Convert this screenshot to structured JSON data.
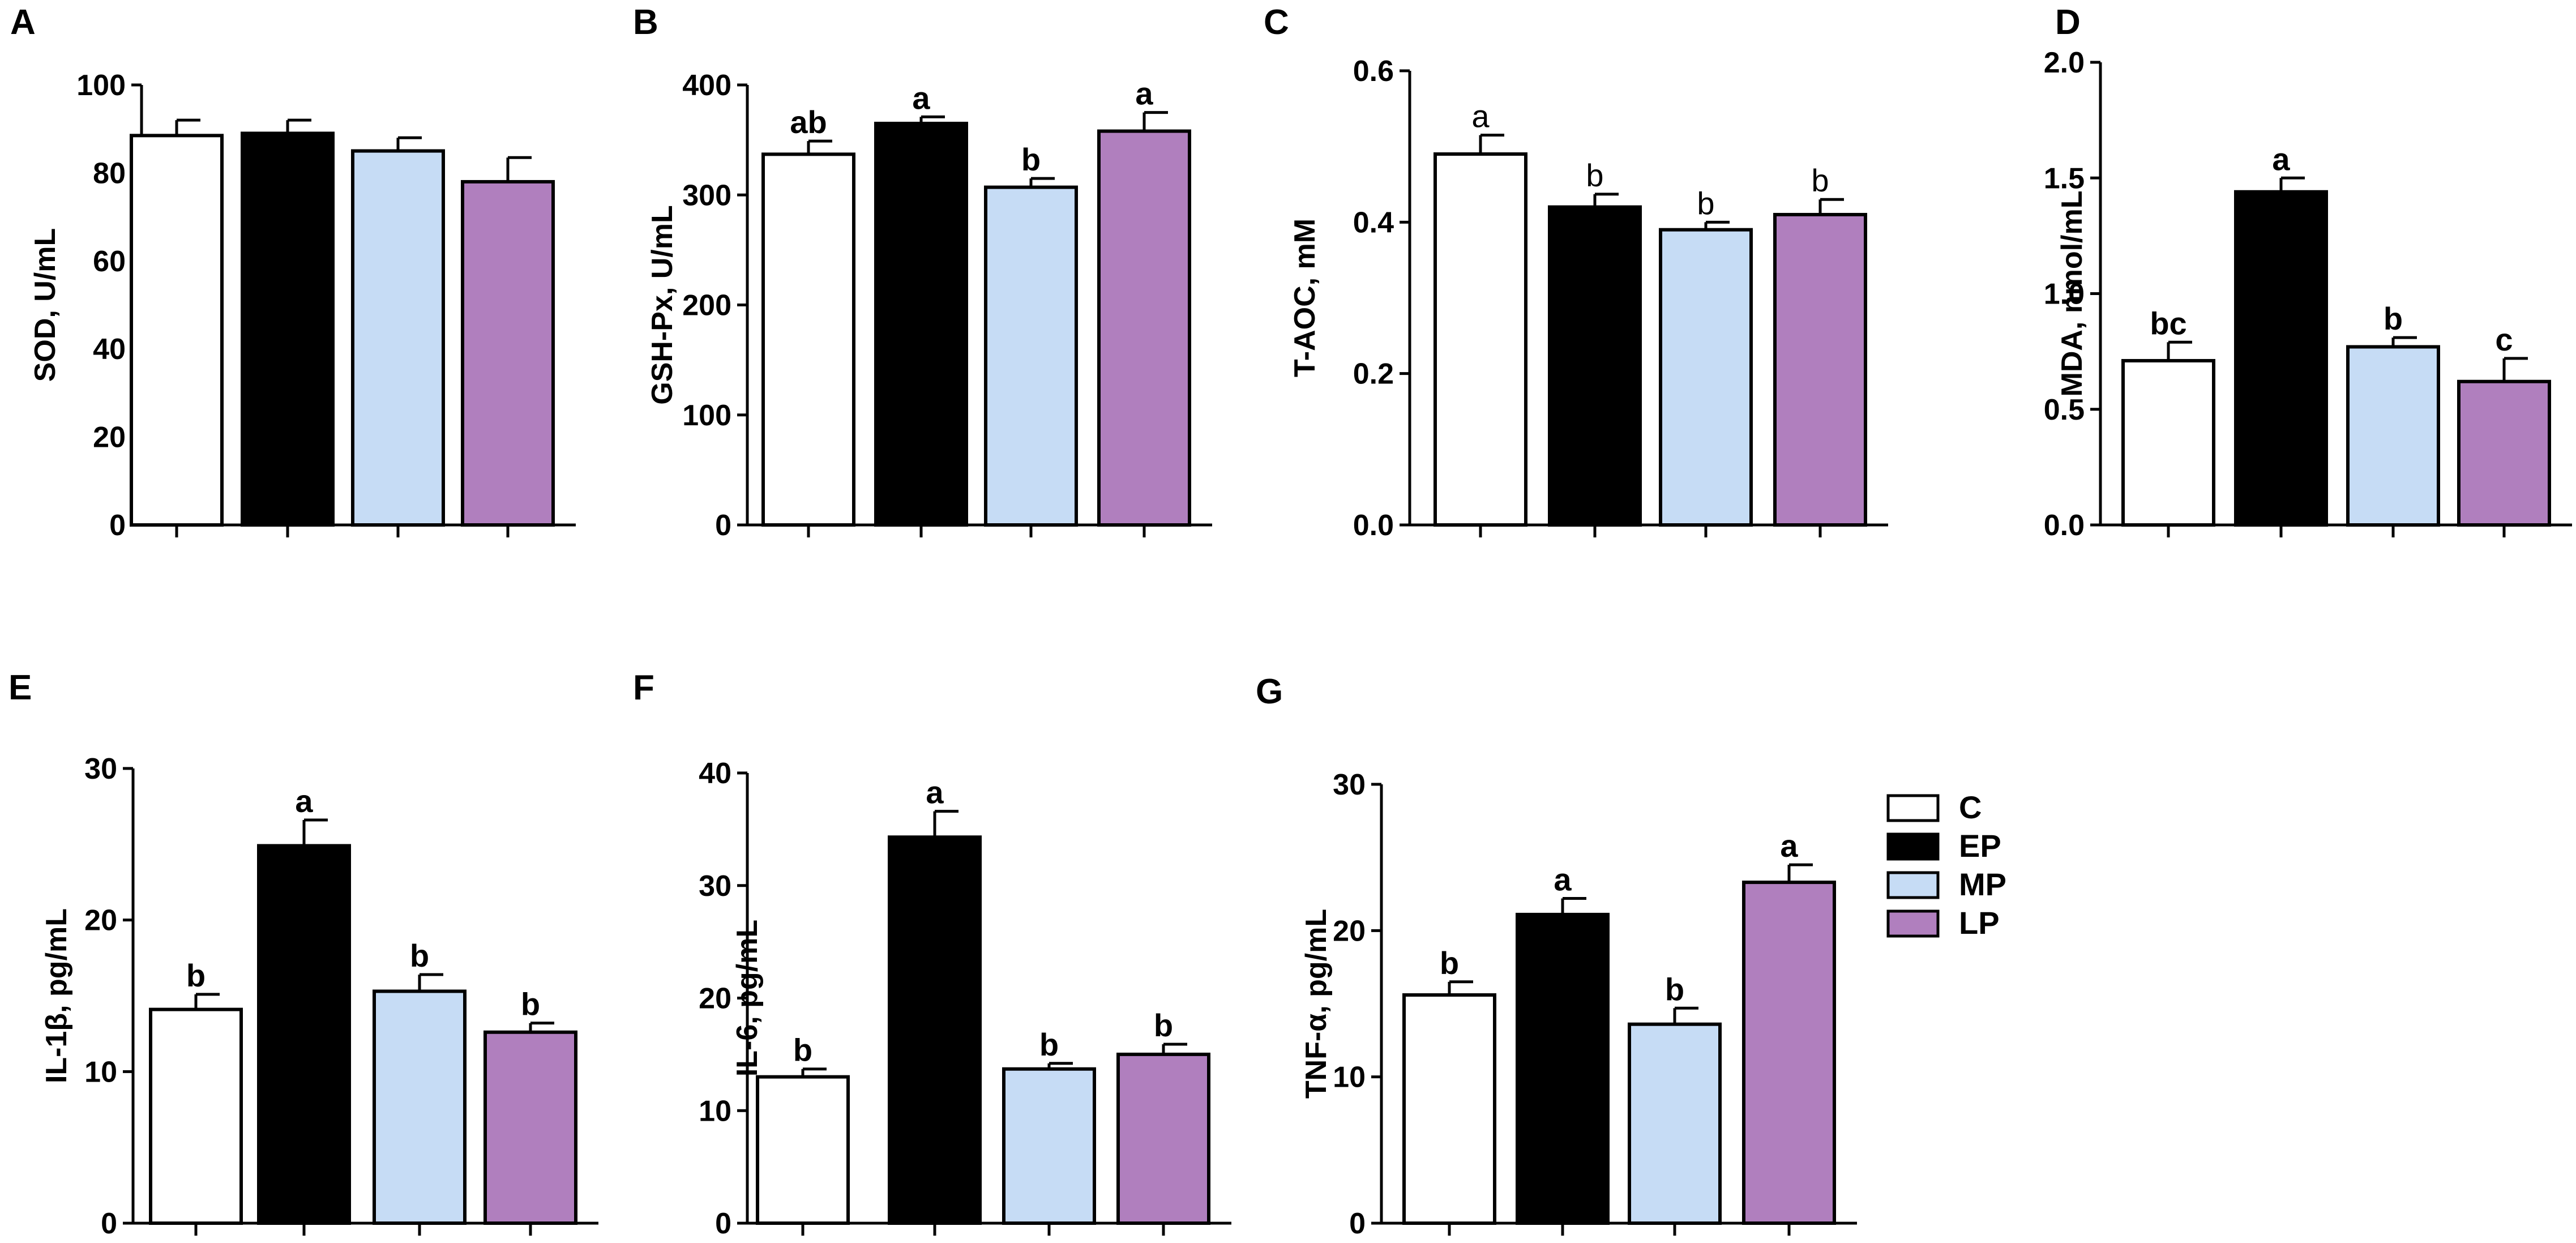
{
  "chart_data": [
    {
      "type": "bar",
      "panel": "A",
      "ylabel": "SOD, U/mL",
      "ylim": [
        0,
        100
      ],
      "yticks": [
        0,
        20,
        40,
        60,
        80,
        100
      ],
      "categories": [
        "C",
        "EP",
        "MP",
        "LP"
      ],
      "values": [
        88.5,
        89,
        85,
        78
      ],
      "errors": [
        3.5,
        3,
        3,
        5.5
      ],
      "letters": [
        "",
        "",
        "",
        ""
      ],
      "letters_bold": false
    },
    {
      "type": "bar",
      "panel": "B",
      "ylabel": "GSH-Px, U/mL",
      "ylim": [
        0,
        400
      ],
      "yticks": [
        0,
        100,
        200,
        300,
        400
      ],
      "categories": [
        "C",
        "EP",
        "MP",
        "LP"
      ],
      "values": [
        337,
        365,
        307,
        358
      ],
      "errors": [
        12,
        6,
        8,
        17
      ],
      "letters": [
        "ab",
        "a",
        "b",
        "a"
      ],
      "letters_bold": true
    },
    {
      "type": "bar",
      "panel": "C",
      "ylabel": "T-AOC, mM",
      "ylim": [
        0,
        0.6
      ],
      "yticks": [
        "0.0",
        "0.2",
        "0.4",
        "0.6"
      ],
      "categories": [
        "C",
        "EP",
        "MP",
        "LP"
      ],
      "values": [
        0.49,
        0.42,
        0.39,
        0.41
      ],
      "errors": [
        0.025,
        0.017,
        0.01,
        0.02
      ],
      "letters": [
        "a",
        "b",
        "b",
        "b"
      ],
      "letters_bold": false
    },
    {
      "type": "bar",
      "panel": "D",
      "ylabel": "MDA, nmol/mL",
      "ylim": [
        0,
        2
      ],
      "yticks": [
        "0.0",
        "0.5",
        "1.0",
        "1.5",
        "2.0"
      ],
      "categories": [
        "C",
        "EP",
        "MP",
        "LP"
      ],
      "values": [
        0.71,
        1.44,
        0.77,
        0.62
      ],
      "errors": [
        0.08,
        0.06,
        0.04,
        0.1
      ],
      "letters": [
        "bc",
        "a",
        "b",
        "c"
      ],
      "letters_bold": true
    },
    {
      "type": "bar",
      "panel": "E",
      "ylabel": "IL-1β, pg/mL",
      "ylim": [
        0,
        30
      ],
      "yticks": [
        0,
        10,
        20,
        30
      ],
      "categories": [
        "C",
        "EP",
        "MP",
        "LP"
      ],
      "values": [
        14.1,
        24.9,
        15.3,
        12.6
      ],
      "errors": [
        1.0,
        1.7,
        1.1,
        0.6
      ],
      "letters": [
        "b",
        "a",
        "b",
        "b"
      ],
      "letters_bold": true
    },
    {
      "type": "bar",
      "panel": "F",
      "ylabel": "IL-6, pg/mL",
      "ylim": [
        0,
        40
      ],
      "yticks": [
        0,
        10,
        20,
        30,
        40
      ],
      "categories": [
        "C",
        "EP",
        "MP",
        "LP"
      ],
      "values": [
        13,
        34.3,
        13.7,
        15
      ],
      "errors": [
        0.7,
        2.3,
        0.5,
        0.9
      ],
      "letters": [
        "b",
        "a",
        "b",
        "b"
      ],
      "letters_bold": true
    },
    {
      "type": "bar",
      "panel": "G",
      "ylabel": "TNF-α, pg/mL",
      "ylim": [
        0,
        30
      ],
      "yticks": [
        0,
        10,
        20,
        30
      ],
      "categories": [
        "C",
        "EP",
        "MP",
        "LP"
      ],
      "values": [
        15.6,
        21.1,
        13.6,
        23.3
      ],
      "errors": [
        0.9,
        1.1,
        1.1,
        1.2
      ],
      "letters": [
        "b",
        "a",
        "b",
        "a"
      ],
      "letters_bold": true
    }
  ],
  "legend": [
    {
      "label": "C",
      "color": "#ffffff"
    },
    {
      "label": "EP",
      "color": "#000000"
    },
    {
      "label": "MP",
      "color": "#c6dcf5"
    },
    {
      "label": "LP",
      "color": "#b07fbe"
    }
  ]
}
